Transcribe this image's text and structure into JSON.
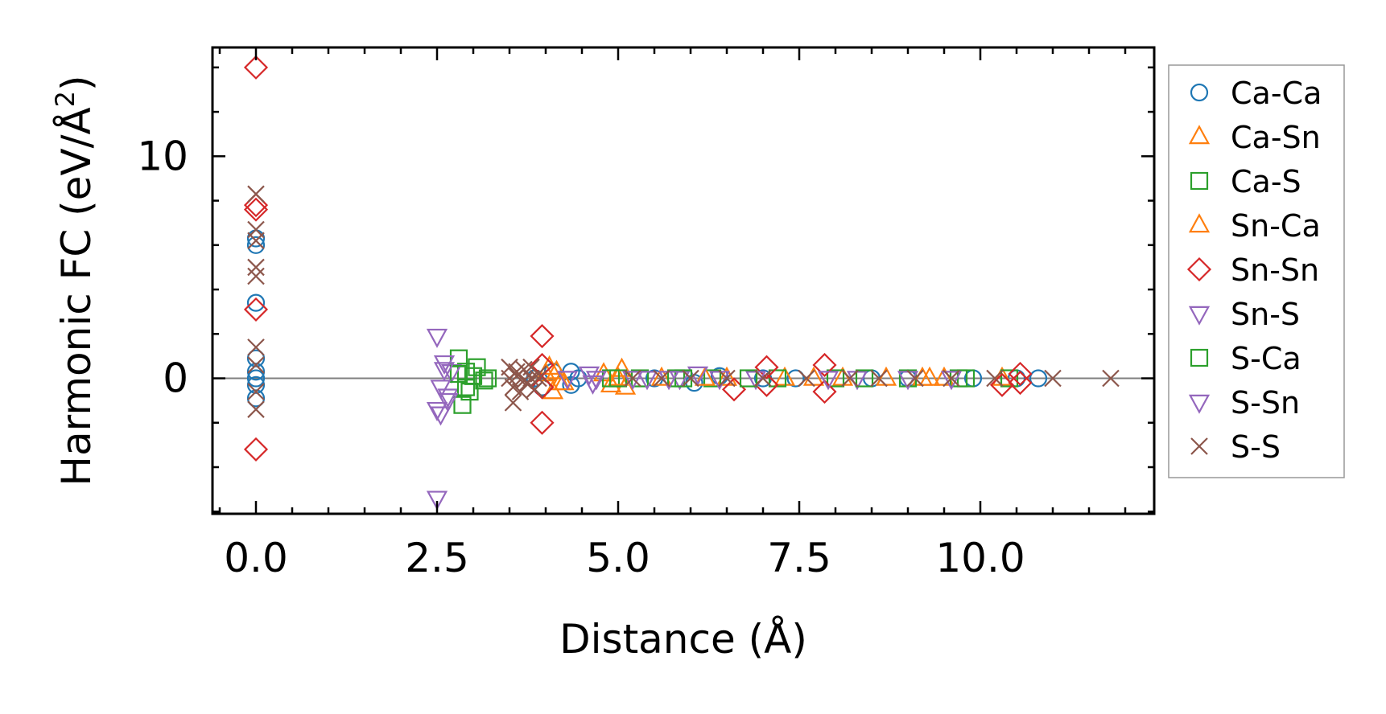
{
  "chart_data": {
    "type": "scatter",
    "title": "",
    "xlabel": "Distance (Å)",
    "ylabel": "Harmonic FC (eV/Å²)",
    "ylabel_main": "Harmonic FC (eV/Å",
    "ylabel_sup": "2",
    "ylabel_tail": ")",
    "xlim": [
      -0.6,
      12.4
    ],
    "ylim": [
      -6.1,
      14.9
    ],
    "xticks": [
      0.0,
      2.5,
      5.0,
      7.5,
      10.0
    ],
    "xtick_labels": [
      "0.0",
      "2.5",
      "5.0",
      "7.5",
      "10.0"
    ],
    "yticks": [
      0,
      10
    ],
    "ytick_labels": [
      "0",
      "10"
    ],
    "grid": false,
    "legend_position": "right, outside plot",
    "zero_line": true,
    "series": [
      {
        "name": "Ca-Ca",
        "marker": "circle",
        "color": "#1f77b4",
        "x": [
          0.0,
          0.0,
          0.0,
          0.0,
          0.0,
          0.0,
          0.0,
          0.0,
          3.85,
          3.95,
          4.1,
          4.35,
          4.35,
          4.45,
          5.5,
          6.05,
          6.4,
          7.0,
          7.45,
          8.5,
          9.0,
          9.9,
          10.5,
          10.8
        ],
        "y": [
          6.3,
          6.0,
          3.4,
          0.9,
          0.3,
          -0.3,
          -0.9,
          0.0,
          0.0,
          -0.4,
          0.3,
          0.3,
          -0.3,
          0.0,
          0.0,
          -0.2,
          0.1,
          0.0,
          0.0,
          0.0,
          0.0,
          0.0,
          0.0,
          0.0
        ]
      },
      {
        "name": "Ca-Sn",
        "marker": "triangle-up",
        "color": "#ff7f0e",
        "x": [
          4.05,
          4.1,
          4.15,
          4.25,
          4.8,
          4.9,
          5.05,
          5.1,
          5.6,
          6.5,
          7.3,
          8.1,
          9.2,
          9.5,
          10.3
        ],
        "y": [
          0.5,
          -0.6,
          0.3,
          -0.2,
          0.2,
          -0.3,
          0.4,
          -0.4,
          0.0,
          0.0,
          0.0,
          0.0,
          0.0,
          0.0,
          0.0
        ]
      },
      {
        "name": "Ca-S",
        "marker": "square",
        "color": "#2ca02c",
        "x": [
          2.8,
          2.85,
          2.9,
          2.95,
          3.05,
          3.15,
          3.2,
          4.9,
          5.3,
          5.8,
          6.3,
          7.2,
          8.0,
          9.0,
          9.8,
          10.4
        ],
        "y": [
          0.9,
          -1.2,
          0.3,
          -0.6,
          0.5,
          -0.1,
          0.0,
          0.0,
          0.0,
          0.0,
          0.0,
          0.0,
          0.0,
          0.0,
          0.0,
          0.0
        ]
      },
      {
        "name": "Sn-Ca",
        "marker": "triangle-up",
        "color": "#ff7f0e",
        "x": [
          4.0,
          4.2,
          5.0,
          6.2,
          7.7,
          8.7,
          9.3
        ],
        "y": [
          0.2,
          -0.2,
          0.0,
          0.0,
          0.0,
          0.0,
          0.0
        ]
      },
      {
        "name": "Sn-Sn",
        "marker": "diamond",
        "color": "#d62728",
        "x": [
          0.0,
          0.0,
          0.0,
          0.0,
          0.0,
          3.95,
          3.95,
          3.95,
          3.95,
          6.6,
          7.05,
          7.05,
          7.85,
          7.85,
          10.3,
          10.55,
          10.55
        ],
        "y": [
          14.0,
          7.8,
          7.6,
          3.1,
          -3.2,
          1.9,
          -2.0,
          0.6,
          -0.4,
          -0.5,
          0.5,
          -0.3,
          0.6,
          -0.6,
          -0.3,
          0.2,
          -0.2
        ]
      },
      {
        "name": "Sn-S",
        "marker": "triangle-down",
        "color": "#9467bd",
        "x": [
          2.5,
          2.5,
          2.55,
          2.6,
          2.65,
          2.7,
          4.3,
          4.6,
          4.65,
          5.4,
          5.85,
          6.1,
          6.9,
          8.3,
          9.0
        ],
        "y": [
          1.9,
          -5.4,
          -1.6,
          0.7,
          -0.8,
          0.3,
          0.0,
          0.2,
          -0.2,
          0.0,
          0.0,
          0.2,
          0.0,
          0.0,
          0.0
        ]
      },
      {
        "name": "S-Ca",
        "marker": "square",
        "color": "#2ca02c",
        "x": [
          2.8,
          2.9,
          3.0,
          5.0,
          5.9,
          6.8,
          8.4,
          9.7
        ],
        "y": [
          0.2,
          -0.4,
          0.1,
          0.0,
          0.0,
          0.0,
          0.0,
          0.0
        ]
      },
      {
        "name": "S-Sn",
        "marker": "triangle-down",
        "color": "#9467bd",
        "x": [
          2.5,
          2.55,
          2.6,
          2.65,
          4.7,
          5.2,
          5.7,
          6.4,
          7.9,
          9.6
        ],
        "y": [
          -1.4,
          -0.4,
          0.4,
          -1.0,
          0.0,
          0.0,
          0.0,
          0.0,
          0.0,
          0.0
        ]
      },
      {
        "name": "S-S",
        "marker": "x",
        "color": "#8c564b",
        "x": [
          0.0,
          0.0,
          0.0,
          0.0,
          0.0,
          0.0,
          0.0,
          0.0,
          0.0,
          3.5,
          3.55,
          3.6,
          3.65,
          3.7,
          3.75,
          3.8,
          3.85,
          3.9,
          3.5,
          3.6,
          3.7,
          3.8,
          3.9,
          3.55,
          5.2,
          5.6,
          6.0,
          6.5,
          7.0,
          7.6,
          8.2,
          8.6,
          9.1,
          9.6,
          10.2,
          11.0,
          11.8
        ],
        "y": [
          8.3,
          6.7,
          6.2,
          5.0,
          4.6,
          1.4,
          0.6,
          -0.6,
          -1.4,
          0.5,
          -0.4,
          0.3,
          -0.6,
          0.4,
          -0.2,
          0.5,
          -0.5,
          0.2,
          0.0,
          0.1,
          -0.1,
          0.0,
          0.0,
          -1.1,
          0.0,
          0.0,
          0.0,
          0.0,
          0.0,
          0.0,
          0.0,
          0.0,
          0.0,
          0.0,
          0.0,
          0.0,
          0.0
        ]
      }
    ]
  }
}
